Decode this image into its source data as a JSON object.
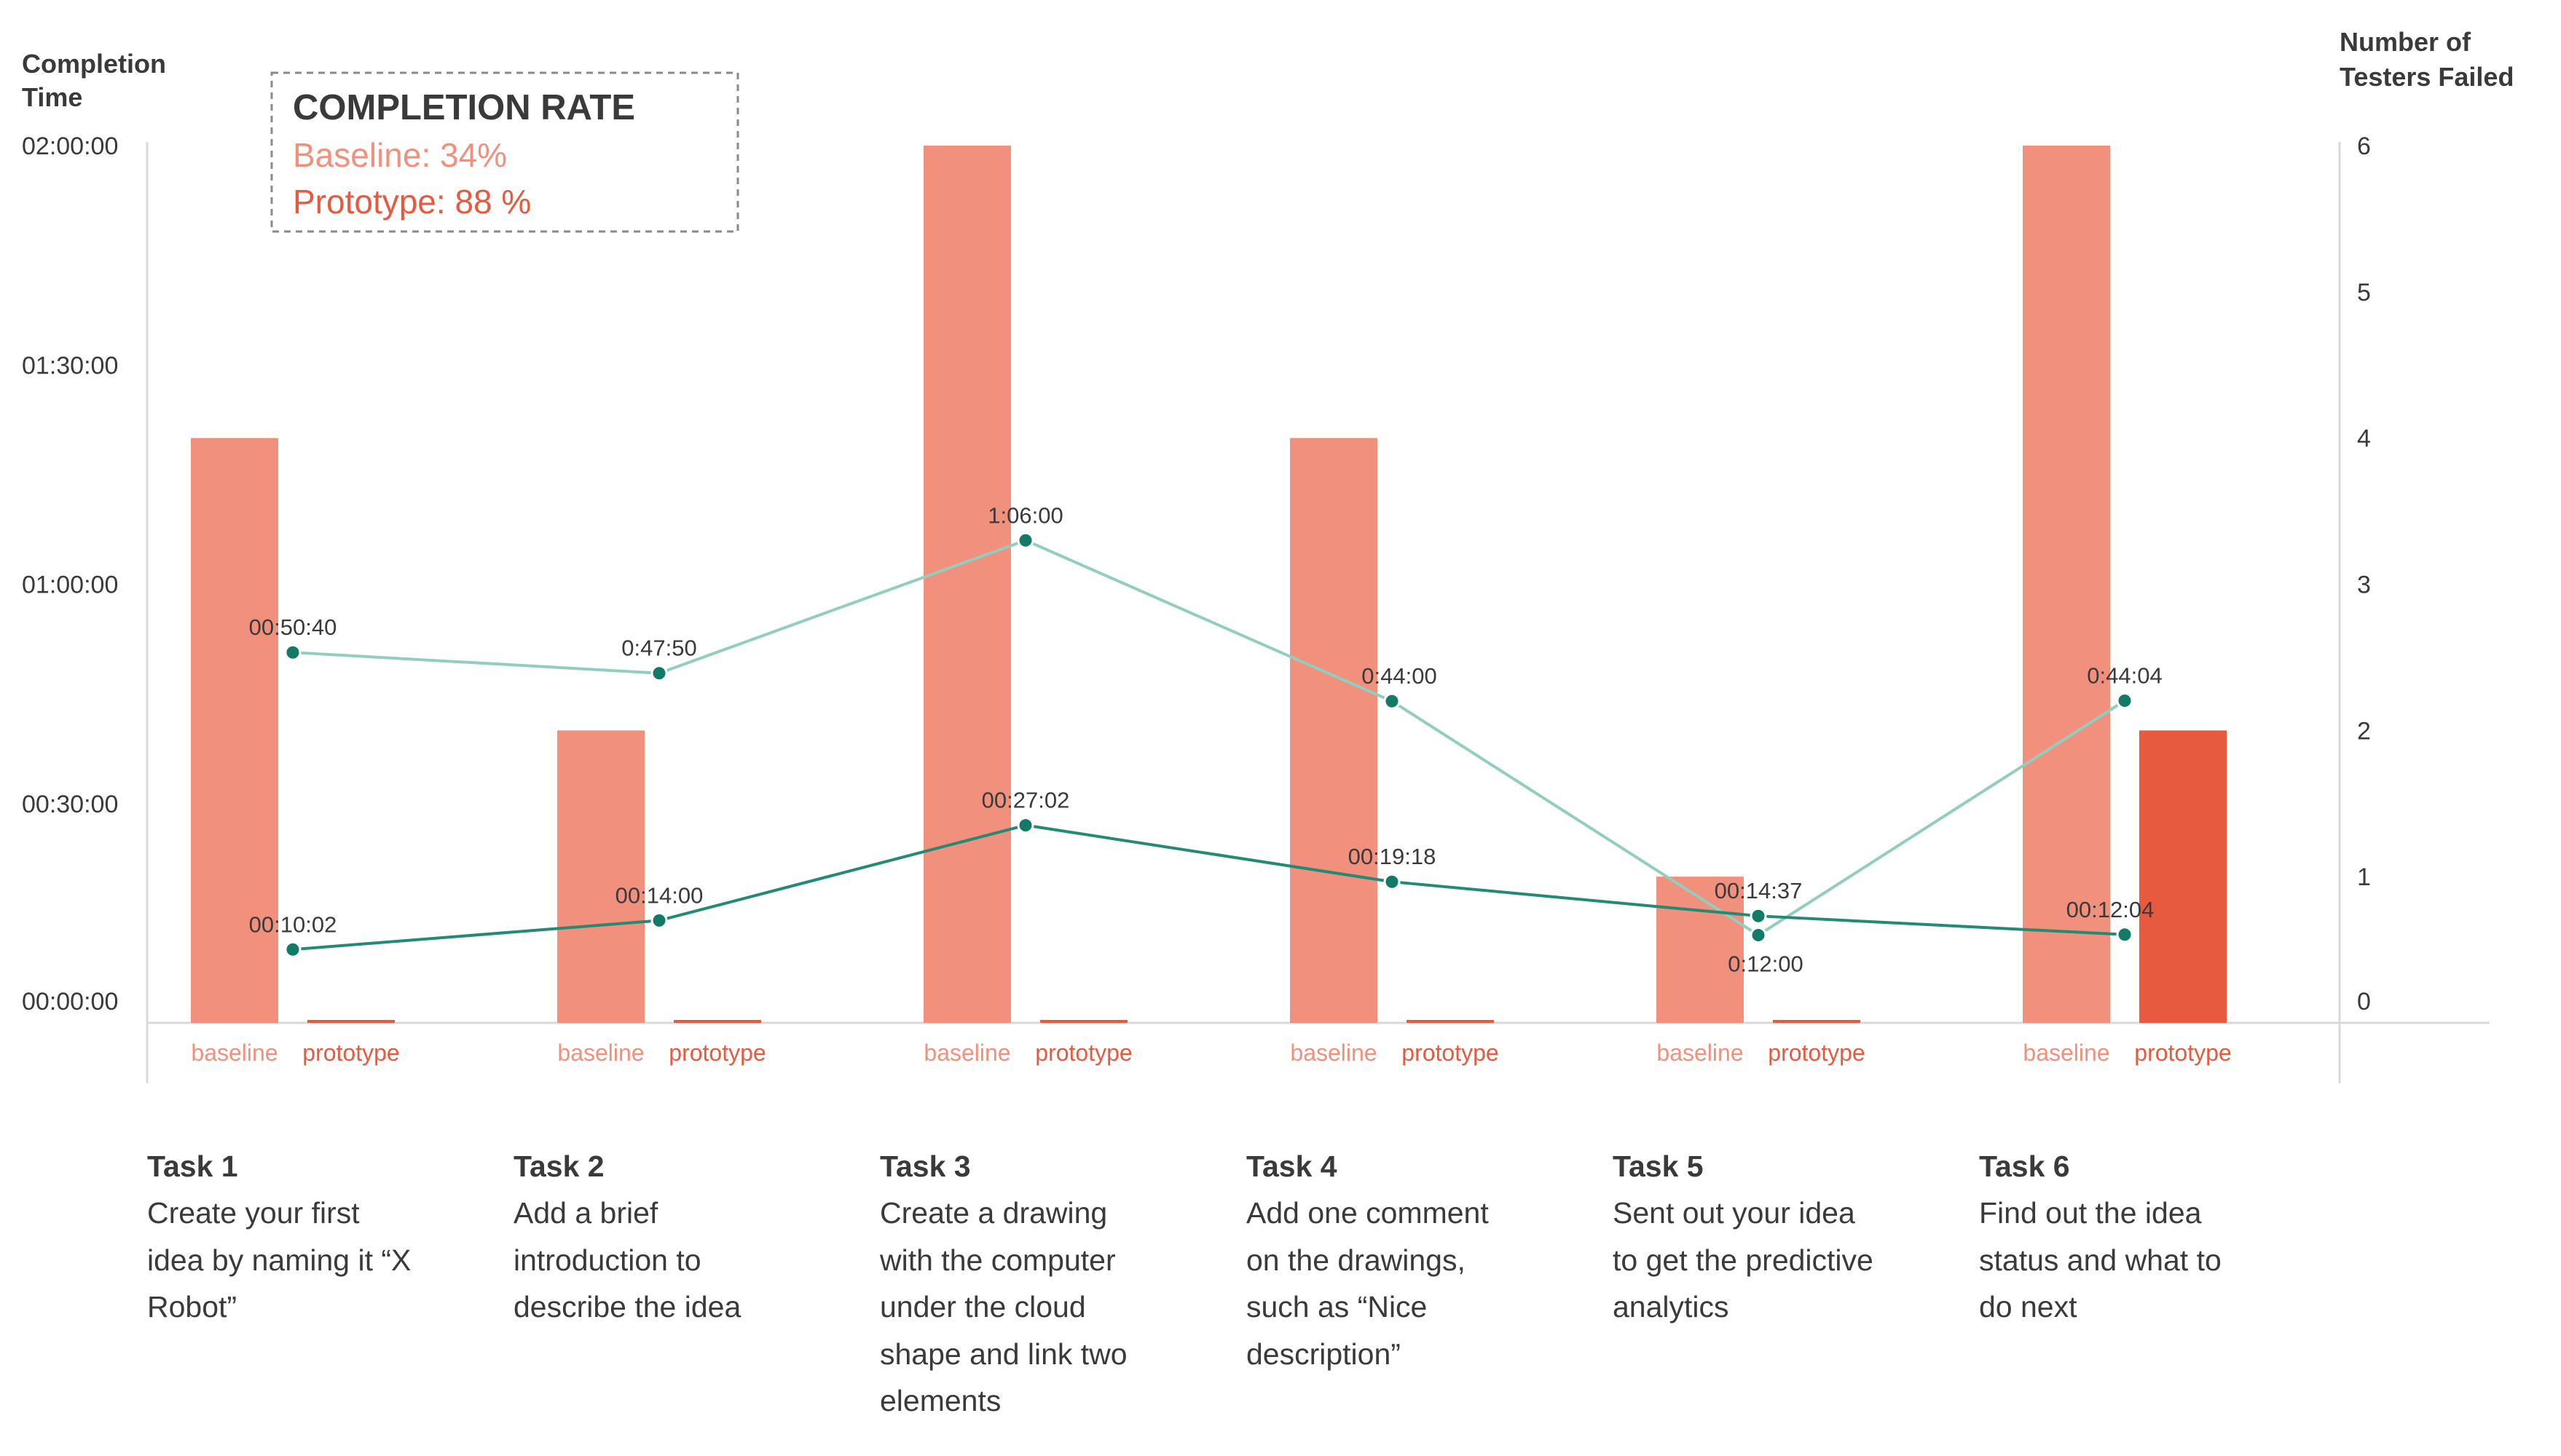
{
  "chart_data": {
    "type": "bar",
    "left_axis": {
      "title_lines": [
        "Completion",
        "Time"
      ],
      "ticks": [
        "00:00:00",
        "00:30:00",
        "01:00:00",
        "01:30:00",
        "02:00:00"
      ],
      "ylim_minutes": [
        0,
        120
      ]
    },
    "right_axis": {
      "title_lines": [
        "Number of",
        "Testers Failed"
      ],
      "ticks": [
        "0",
        "1",
        "2",
        "3",
        "4",
        "5",
        "6"
      ],
      "ylim": [
        0,
        6
      ]
    },
    "legend": {
      "title": "COMPLETION RATE",
      "baseline": "Baseline: 34%",
      "prototype": "Prototype: 88 %"
    },
    "categories": [
      "Task 1",
      "Task 2",
      "Task 3",
      "Task 4",
      "Task 5",
      "Task 6"
    ],
    "bar_labels": [
      "baseline",
      "prototype"
    ],
    "series": [
      {
        "name": "baseline",
        "kind": "bar",
        "axis": "right",
        "values": [
          4,
          2,
          6,
          4,
          1,
          6
        ]
      },
      {
        "name": "prototype",
        "kind": "bar",
        "axis": "right",
        "values": [
          0,
          0,
          0,
          0,
          0,
          2
        ]
      },
      {
        "kind": "line",
        "axis": "left",
        "values_minutes": [
          50.67,
          47.83,
          66.0,
          44.0,
          12.0,
          44.07
        ],
        "labels": [
          "00:50:40",
          "0:47:50",
          "1:06:00",
          "0:44:00",
          "0:12:00",
          "0:44:04"
        ]
      },
      {
        "kind": "line",
        "axis": "left",
        "values_minutes": [
          10.03,
          14.0,
          27.03,
          19.3,
          14.62,
          12.07
        ],
        "labels": [
          "00:10:02",
          "00:14:00",
          "00:27:02",
          "00:19:18",
          "00:14:37",
          "00:12:04"
        ]
      }
    ]
  },
  "tasks": [
    {
      "title": "Task 1",
      "lines": [
        "Create your first",
        "idea by naming it “X",
        "Robot”"
      ]
    },
    {
      "title": "Task 2",
      "lines": [
        "Add a brief",
        "introduction to",
        "describe the idea"
      ]
    },
    {
      "title": "Task 3",
      "lines": [
        "Create a drawing",
        "with the computer",
        "under the cloud",
        "shape and link two",
        "elements"
      ]
    },
    {
      "title": "Task 4",
      "lines": [
        "Add one comment",
        "on the drawings,",
        "such as “Nice",
        "description”"
      ]
    },
    {
      "title": "Task 5",
      "lines": [
        "Sent out your idea",
        "to get the predictive",
        "analytics"
      ]
    },
    {
      "title": "Task 6",
      "lines": [
        "Find out the idea",
        "status and what to",
        "do next"
      ]
    }
  ],
  "colors": {
    "baseline": "#f0907d",
    "prototype": "#e85a40",
    "line_light": "#92cdbe",
    "line_dark": "#238a74",
    "marker": "#127b65",
    "text": "#3a3a3a",
    "axis": "#d9d9d9"
  }
}
